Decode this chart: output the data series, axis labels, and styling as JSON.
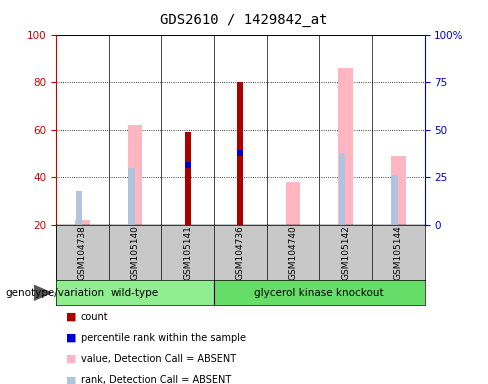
{
  "title": "GDS2610 / 1429842_at",
  "samples": [
    "GSM104738",
    "GSM105140",
    "GSM105141",
    "GSM104736",
    "GSM104740",
    "GSM105142",
    "GSM105144"
  ],
  "wt_count": 3,
  "gk_count": 4,
  "ylim_left": [
    20,
    100
  ],
  "yticks_left": [
    20,
    40,
    60,
    80,
    100
  ],
  "yticks_right_pos": [
    20,
    40,
    60,
    80,
    100
  ],
  "yticklabels_right": [
    "0",
    "25",
    "50",
    "75",
    "100%"
  ],
  "count": {
    "GSM104738": null,
    "GSM105140": null,
    "GSM105141": 59,
    "GSM104736": 80,
    "GSM104740": null,
    "GSM105142": null,
    "GSM105144": null
  },
  "percentile_rank": {
    "GSM104738": null,
    "GSM105140": null,
    "GSM105141": 44,
    "GSM104736": 49,
    "GSM104740": null,
    "GSM105142": null,
    "GSM105144": null
  },
  "value_absent": {
    "GSM104738": 22,
    "GSM105140": 62,
    "GSM105141": null,
    "GSM104736": null,
    "GSM104740": 38,
    "GSM105142": 86,
    "GSM105144": 49
  },
  "rank_absent": {
    "GSM104738": 34,
    "GSM105140": 44,
    "GSM105141": null,
    "GSM104736": null,
    "GSM104740": null,
    "GSM105142": 50,
    "GSM105144": 41
  },
  "count_color": "#AA0000",
  "percentile_color": "#0000CC",
  "value_absent_color": "#FFB6C1",
  "rank_absent_color": "#B0C4DE",
  "left_axis_color": "#CC0000",
  "right_axis_color": "#0000CC",
  "wt_color": "#90EE90",
  "gk_color": "#66DD66",
  "label_bg": "#C8C8C8",
  "plot_bg": "#FFFFFF",
  "outer_bg": "#FFFFFF"
}
